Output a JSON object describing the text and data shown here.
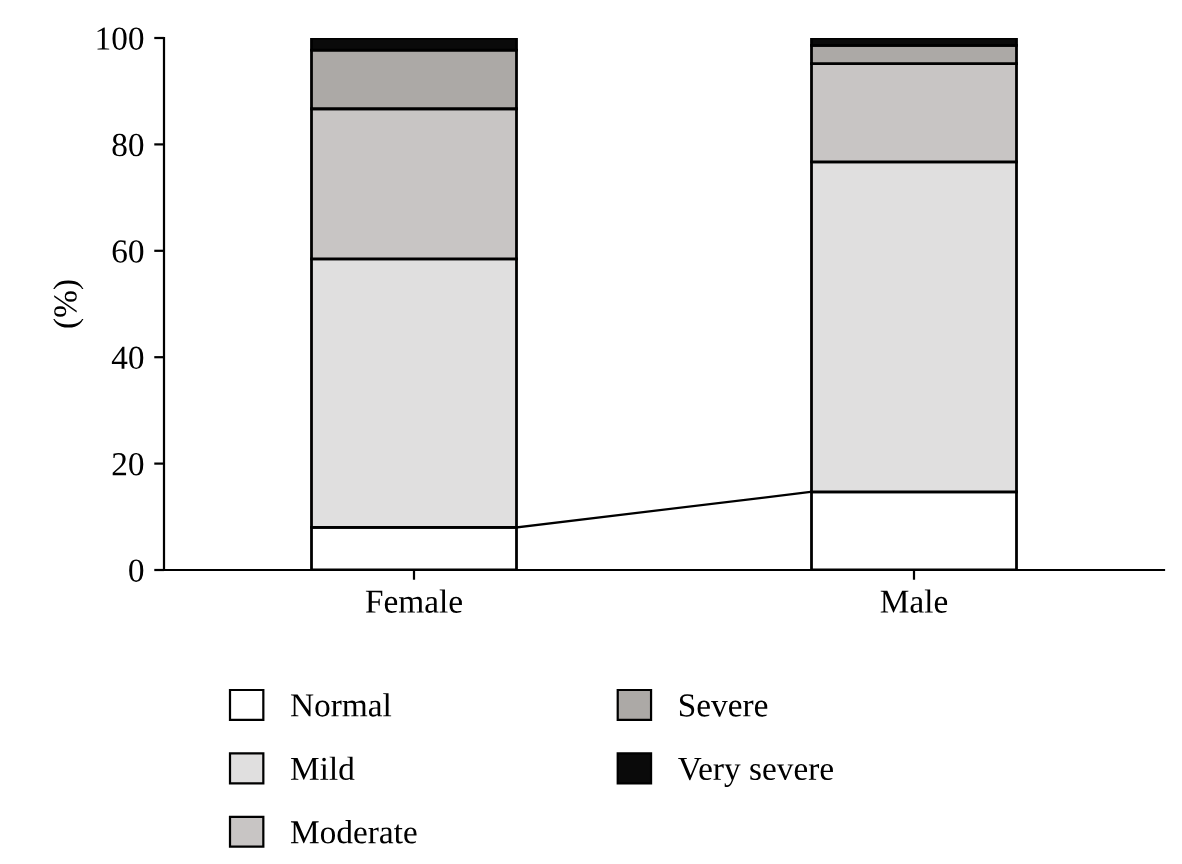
{
  "chart_data": {
    "type": "bar",
    "stacked": true,
    "ylabel": "(%)",
    "categories": [
      "Female",
      "Male"
    ],
    "series": [
      {
        "name": "Normal",
        "color": "#ffffff",
        "values": [
          8,
          14.7
        ]
      },
      {
        "name": "Mild",
        "color": "#e0dfdf",
        "values": [
          50.5,
          62
        ]
      },
      {
        "name": "Moderate",
        "color": "#c8c5c4",
        "values": [
          28.2,
          18.5
        ]
      },
      {
        "name": "Severe",
        "color": "#aca9a6",
        "values": [
          11,
          3.4
        ]
      },
      {
        "name": "Very severe",
        "color": "#0a0a0a",
        "values": [
          2.3,
          1.4
        ]
      }
    ],
    "ylim": [
      0,
      100
    ],
    "yticks": [
      0,
      20,
      40,
      60,
      80,
      100
    ],
    "grid": false,
    "legend": "bottom"
  }
}
